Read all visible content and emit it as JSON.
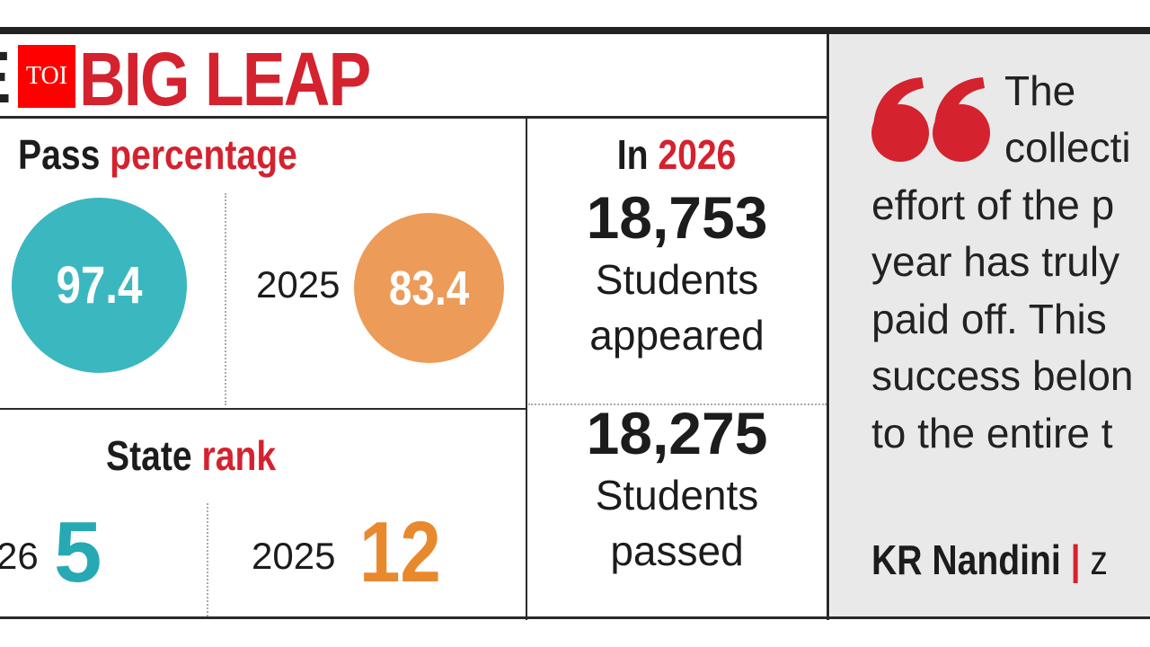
{
  "header": {
    "title_prefix_fragment": "E",
    "title": "BIG LEAP",
    "logo": "TOI"
  },
  "pass_percentage": {
    "label_black": "Pass",
    "label_red": "percentage",
    "current_value": "97.4",
    "prev_year": "2025",
    "prev_value": "83.4"
  },
  "state_rank": {
    "label_black": "State",
    "label_red": "rank",
    "current_year_fragment": "26",
    "current_value": "5",
    "prev_year": "2025",
    "prev_value": "12"
  },
  "in_year": {
    "label_black": "In",
    "label_red": "2026",
    "appeared_count": "18,753",
    "appeared_line1": "Students",
    "appeared_line2": "appeared",
    "passed_count": "18,275",
    "passed_line1": "Students",
    "passed_line2": "passed"
  },
  "quote": {
    "lines": [
      "The",
      "collecti",
      "effort of the p",
      "year has truly",
      "paid off. This",
      "success belon",
      "to the entire t"
    ],
    "author": "KR Nandini",
    "separator": "|",
    "author_suffix_fragment": "z"
  },
  "colors": {
    "red": "#d4222e",
    "teal": "#3bb7c0",
    "orange": "#ed9b58",
    "rank_orange": "#e8892e",
    "panel": "#e9e9e9"
  }
}
